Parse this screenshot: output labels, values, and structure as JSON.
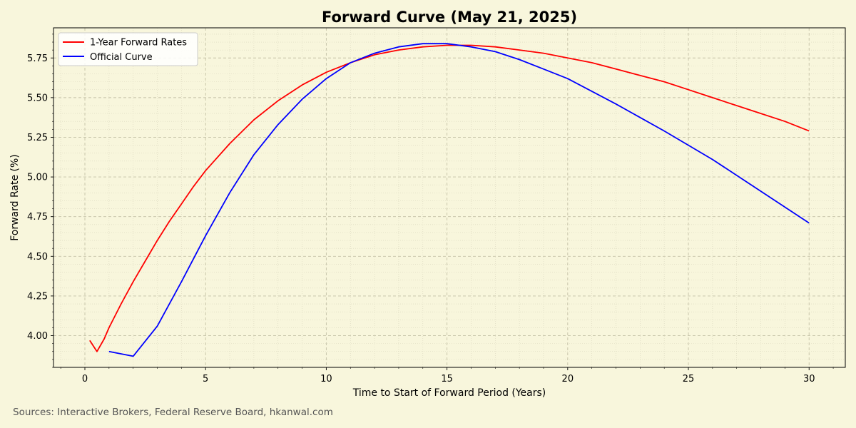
{
  "chart_data": {
    "type": "line",
    "title": "Forward Curve (May 21, 2025)",
    "xlabel": "Time to Start of Forward Period (Years)",
    "ylabel": "Forward Rate (%)",
    "xlim": [
      -1.3,
      31.5
    ],
    "ylim": [
      3.8,
      5.94
    ],
    "xticks": [
      0,
      5,
      10,
      15,
      20,
      25,
      30
    ],
    "yticks": [
      4.0,
      4.25,
      4.5,
      4.75,
      5.0,
      5.25,
      5.5,
      5.75
    ],
    "grid": true,
    "legend_position": "top-left",
    "series": [
      {
        "name": "1-Year Forward Rates",
        "color": "#ff0000",
        "x": [
          0.2,
          0.5,
          0.8,
          1,
          1.5,
          2,
          2.5,
          3,
          3.5,
          4,
          4.5,
          5,
          6,
          7,
          8,
          9,
          10,
          11,
          12,
          13,
          14,
          15,
          16,
          17,
          18,
          19,
          20,
          21,
          22,
          23,
          24,
          25,
          26,
          27,
          28,
          29,
          30
        ],
        "y": [
          3.97,
          3.9,
          3.98,
          4.05,
          4.2,
          4.34,
          4.47,
          4.6,
          4.72,
          4.83,
          4.94,
          5.04,
          5.21,
          5.36,
          5.48,
          5.58,
          5.66,
          5.72,
          5.77,
          5.8,
          5.82,
          5.83,
          5.83,
          5.82,
          5.8,
          5.78,
          5.75,
          5.72,
          5.68,
          5.64,
          5.6,
          5.55,
          5.5,
          5.45,
          5.4,
          5.35,
          5.29
        ]
      },
      {
        "name": "Official Curve",
        "color": "#0000ff",
        "x": [
          1,
          2,
          3,
          4,
          5,
          6,
          7,
          8,
          9,
          10,
          11,
          12,
          13,
          14,
          15,
          16,
          17,
          18,
          19,
          20,
          22,
          24,
          26,
          28,
          30
        ],
        "y": [
          3.9,
          3.87,
          4.06,
          4.34,
          4.63,
          4.9,
          5.14,
          5.33,
          5.49,
          5.62,
          5.72,
          5.78,
          5.82,
          5.84,
          5.84,
          5.82,
          5.79,
          5.74,
          5.68,
          5.62,
          5.46,
          5.29,
          5.11,
          4.91,
          4.71
        ]
      }
    ]
  },
  "source_note": "Sources: Interactive Brokers, Federal Reserve Board, hkanwal.com"
}
